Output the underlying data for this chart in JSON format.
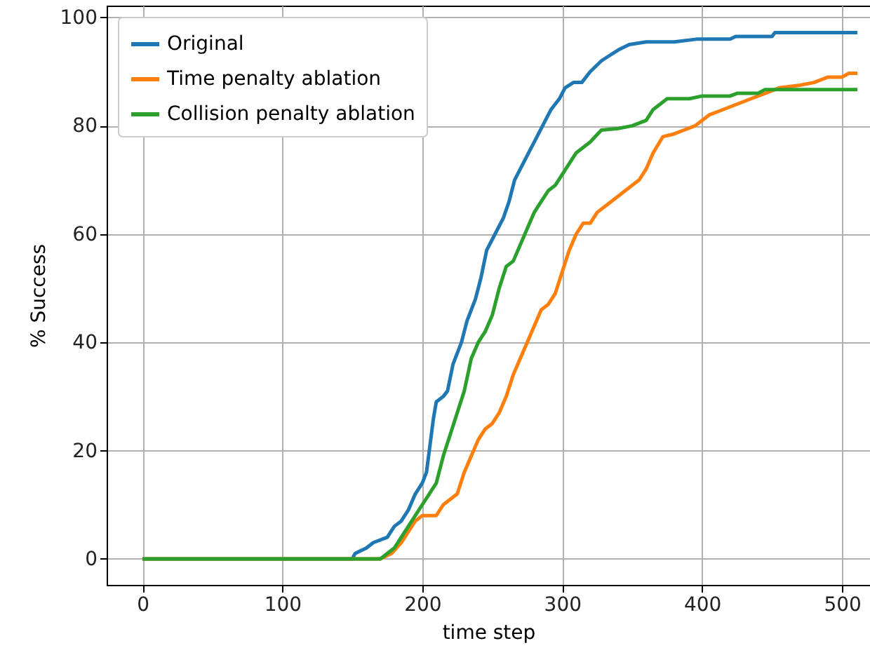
{
  "chart_data": {
    "type": "line",
    "xlabel": "time step",
    "ylabel": "% Success",
    "xlim": [
      -25.6,
      520
    ],
    "xticks": [
      0,
      100,
      200,
      300,
      400,
      500
    ],
    "ylim": [
      -4.8,
      102.2
    ],
    "yticks": [
      0,
      20,
      40,
      60,
      80,
      100
    ],
    "grid": true,
    "legend": "top left",
    "line_style": "solid",
    "marker": "none",
    "series": [
      {
        "name": "Original",
        "color": "#1f77b4",
        "x": [
          0,
          150,
          152,
          160,
          165,
          175,
          180,
          185,
          190,
          195,
          200,
          203,
          206,
          208,
          210,
          215,
          218,
          222,
          228,
          232,
          238,
          242,
          246,
          252,
          258,
          262,
          266,
          270,
          276,
          282,
          288,
          292,
          298,
          302,
          308,
          314,
          320,
          328,
          334,
          340,
          348,
          360,
          380,
          396,
          420,
          424,
          450,
          452,
          511
        ],
        "values": [
          0,
          0,
          1,
          2,
          3,
          4,
          6,
          7,
          9,
          12,
          14,
          16,
          22,
          26,
          29,
          30,
          31,
          36,
          40,
          44,
          48,
          52,
          57,
          60,
          63,
          66,
          70,
          72,
          75,
          78,
          81,
          83,
          85,
          87,
          88,
          88,
          90,
          92,
          93,
          94,
          95,
          95.5,
          95.5,
          96,
          96,
          96.5,
          96.5,
          97.2,
          97.2
        ]
      },
      {
        "name": "Time penalty ablation",
        "color": "#ff7f0e",
        "x": [
          0,
          170,
          178,
          185,
          190,
          195,
          200,
          210,
          215,
          220,
          225,
          230,
          235,
          240,
          245,
          250,
          255,
          260,
          265,
          270,
          275,
          280,
          285,
          290,
          295,
          300,
          305,
          310,
          315,
          320,
          325,
          335,
          345,
          355,
          360,
          365,
          372,
          380,
          390,
          395,
          400,
          405,
          415,
          425,
          435,
          445,
          455,
          470,
          480,
          490,
          500,
          505,
          511
        ],
        "values": [
          0,
          0,
          1,
          3,
          5,
          7,
          8,
          8,
          10,
          11,
          12,
          16,
          19,
          22,
          24,
          25,
          27,
          30,
          34,
          37,
          40,
          43,
          46,
          47,
          49,
          53,
          57,
          60,
          62,
          62,
          64,
          66,
          68,
          70,
          72,
          75,
          78,
          78.5,
          79.5,
          80,
          81,
          82,
          83,
          84,
          85,
          86,
          87,
          87.5,
          88,
          89,
          89,
          89.7,
          89.7
        ]
      },
      {
        "name": "Collision penalty ablation",
        "color": "#2ca02c",
        "x": [
          0,
          170,
          175,
          180,
          185,
          190,
          195,
          200,
          205,
          210,
          215,
          220,
          225,
          230,
          235,
          240,
          245,
          250,
          255,
          260,
          265,
          270,
          275,
          280,
          285,
          290,
          295,
          300,
          305,
          310,
          315,
          320,
          328,
          340,
          350,
          360,
          365,
          370,
          375,
          391,
          400,
          420,
          425,
          440,
          445,
          511
        ],
        "values": [
          0,
          0,
          1,
          2,
          4,
          6,
          8,
          10,
          12,
          14,
          19,
          23,
          27,
          31,
          37,
          40,
          42,
          45,
          50,
          54,
          55,
          58,
          61,
          64,
          66,
          68,
          69,
          71,
          73,
          75,
          76,
          77,
          79.2,
          79.5,
          80,
          81,
          83,
          84,
          85,
          85,
          85.5,
          85.5,
          86,
          86,
          86.7,
          86.7
        ]
      }
    ]
  }
}
